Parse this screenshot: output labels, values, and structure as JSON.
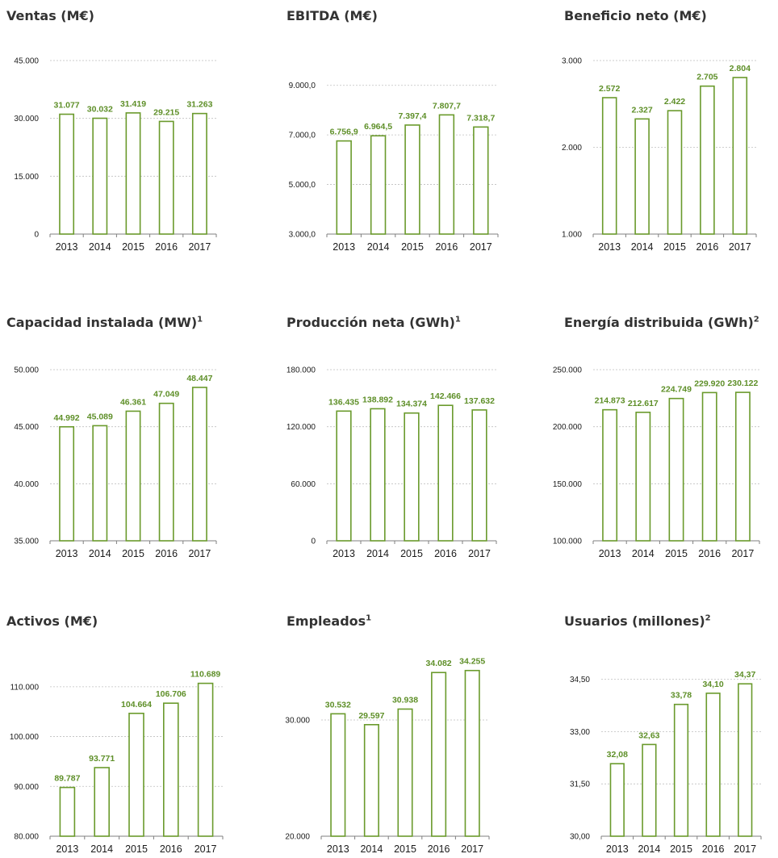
{
  "colors": {
    "bar_stroke": "#6a9a2c",
    "label": "#5e8f28",
    "axis": "#7f7f7f",
    "grid": "#bfbfbf",
    "tick_text": "#1a1a1a",
    "title": "#333333"
  },
  "chart_data": [
    {
      "type": "bar",
      "title": "Ventas (M€)",
      "title_sup": "",
      "categories": [
        "2013",
        "2014",
        "2015",
        "2016",
        "2017"
      ],
      "values": [
        31077,
        30032,
        31419,
        29215,
        31263
      ],
      "value_labels": [
        "31.077",
        "30.032",
        "31.419",
        "29.215",
        "31.263"
      ],
      "ylim": [
        0,
        45000
      ],
      "yticks": [
        0,
        15000,
        30000,
        45000
      ],
      "ytick_labels": [
        "0",
        "15.000",
        "30.000",
        "45.000"
      ],
      "grid": true
    },
    {
      "type": "bar",
      "title": "EBITDA (M€)",
      "title_sup": "",
      "categories": [
        "2013",
        "2014",
        "2015",
        "2016",
        "2017"
      ],
      "values": [
        6756.9,
        6964.5,
        7397.4,
        7807.7,
        7318.7
      ],
      "value_labels": [
        "6.756,9",
        "6.964,5",
        "7.397,4",
        "7.807,7",
        "7.318,7"
      ],
      "ylim": [
        3000,
        10000
      ],
      "yticks": [
        3000,
        5000,
        7000,
        9000
      ],
      "ytick_labels": [
        "3.000,0",
        "5.000,0",
        "7.000,0",
        "9.000,0"
      ],
      "grid": true
    },
    {
      "type": "bar",
      "title": "Beneficio neto (M€)",
      "title_sup": "",
      "categories": [
        "2013",
        "2014",
        "2015",
        "2016",
        "2017"
      ],
      "values": [
        2572,
        2327,
        2422,
        2705,
        2804
      ],
      "value_labels": [
        "2.572",
        "2.327",
        "2.422",
        "2.705",
        "2.804"
      ],
      "ylim": [
        1000,
        3000
      ],
      "yticks": [
        1000,
        2000,
        3000
      ],
      "ytick_labels": [
        "1.000",
        "2.000",
        "3.000"
      ],
      "grid": true
    },
    {
      "type": "bar",
      "title": "Capacidad instalada (MW)",
      "title_sup": "1",
      "categories": [
        "2013",
        "2014",
        "2015",
        "2016",
        "2017"
      ],
      "values": [
        44992,
        45089,
        46361,
        47049,
        48447
      ],
      "value_labels": [
        "44.992",
        "45.089",
        "46.361",
        "47.049",
        "48.447"
      ],
      "ylim": [
        35000,
        50000
      ],
      "yticks": [
        35000,
        40000,
        45000,
        50000
      ],
      "ytick_labels": [
        "35.000",
        "40.000",
        "45.000",
        "50.000"
      ],
      "grid": true
    },
    {
      "type": "bar",
      "title": "Producción neta (GWh)",
      "title_sup": "1",
      "categories": [
        "2013",
        "2014",
        "2015",
        "2016",
        "2017"
      ],
      "values": [
        136435,
        138892,
        134374,
        142466,
        137632
      ],
      "value_labels": [
        "136.435",
        "138.892",
        "134.374",
        "142.466",
        "137.632"
      ],
      "ylim": [
        0,
        180000
      ],
      "yticks": [
        0,
        60000,
        120000,
        180000
      ],
      "ytick_labels": [
        "0",
        "60.000",
        "120.000",
        "180.000"
      ],
      "grid": true
    },
    {
      "type": "bar",
      "title": "Energía distribuida (GWh)",
      "title_sup": "2",
      "categories": [
        "2013",
        "2014",
        "2015",
        "2016",
        "2017"
      ],
      "values": [
        214873,
        212617,
        224749,
        229920,
        230122
      ],
      "value_labels": [
        "214.873",
        "212.617",
        "224.749",
        "229.920",
        "230.122"
      ],
      "ylim": [
        100000,
        250000
      ],
      "yticks": [
        100000,
        150000,
        200000,
        250000
      ],
      "ytick_labels": [
        "100.000",
        "150.000",
        "200.000",
        "250.000"
      ],
      "grid": true
    },
    {
      "type": "bar",
      "title": "Activos (M€)",
      "title_sup": "",
      "categories": [
        "2013",
        "2014",
        "2015",
        "2016",
        "2017"
      ],
      "values": [
        89787,
        93771,
        104664,
        106706,
        110689
      ],
      "value_labels": [
        "89.787",
        "93.771",
        "104.664",
        "106.706",
        "110.689"
      ],
      "ylim": [
        80000,
        115000
      ],
      "yticks": [
        80000,
        90000,
        100000,
        110000
      ],
      "ytick_labels": [
        "80.000",
        "90.000",
        "100.000",
        "110.000"
      ],
      "grid": true
    },
    {
      "type": "bar",
      "title": "Empleados",
      "title_sup": "1",
      "categories": [
        "2013",
        "2014",
        "2015",
        "2016",
        "2017"
      ],
      "values": [
        30532,
        29597,
        30938,
        34082,
        34255
      ],
      "value_labels": [
        "30.532",
        "29.597",
        "30.938",
        "34.082",
        "34.255"
      ],
      "ylim": [
        20000,
        35000
      ],
      "yticks": [
        20000,
        30000
      ],
      "ytick_labels": [
        "20.000",
        "30.000"
      ],
      "grid": true
    },
    {
      "type": "bar",
      "title": "Usuarios (millones)",
      "title_sup": "2",
      "categories": [
        "2013",
        "2014",
        "2015",
        "2016",
        "2017"
      ],
      "values": [
        32.08,
        32.63,
        33.78,
        34.1,
        34.37
      ],
      "value_labels": [
        "32,08",
        "32,63",
        "33,78",
        "34,10",
        "34,37"
      ],
      "ylim": [
        30,
        35
      ],
      "yticks": [
        30,
        31.5,
        33,
        34.5
      ],
      "ytick_labels": [
        "30,00",
        "31,50",
        "33,00",
        "34,50"
      ],
      "grid": true
    }
  ]
}
